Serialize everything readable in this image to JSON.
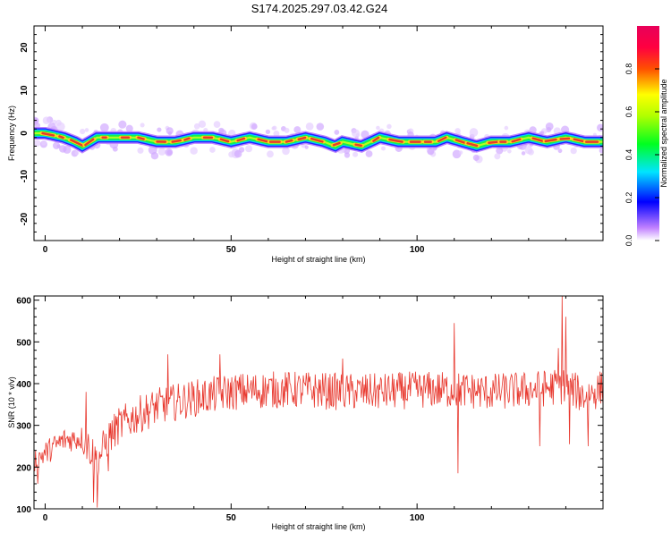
{
  "title": "S174.2025.297.03.42.G24",
  "colors": {
    "snr_line": "#e8392f",
    "trace_core": "#e53d2a",
    "axis": "#000000"
  },
  "chart_data": [
    {
      "type": "heatmap",
      "xlabel": "Height of straight line (km)",
      "ylabel": "Frequency (Hz)",
      "xlim": [
        -3,
        150
      ],
      "ylim": [
        -25,
        25
      ],
      "xticks": [
        0,
        50,
        100
      ],
      "yticks": [
        -20,
        -10,
        0,
        10,
        20
      ],
      "colorbar": {
        "label": "Normalized spectral amplitude",
        "range": [
          0,
          1
        ],
        "ticks": [
          "0.0",
          "0.2",
          "0.4",
          "0.6",
          "0.8"
        ],
        "tick_values": [
          0.0,
          0.2,
          0.4,
          0.6,
          0.8
        ],
        "colormap": "rainbow (white-violet-blue-cyan-green-yellow-red-magenta)"
      },
      "ridge": {
        "x": [
          -3,
          0,
          5,
          8,
          10,
          14,
          20,
          25,
          30,
          35,
          40,
          45,
          50,
          55,
          60,
          65,
          70,
          75,
          78,
          80,
          85,
          90,
          95,
          100,
          105,
          108,
          112,
          116,
          120,
          125,
          130,
          135,
          140,
          145
        ],
        "freq_hz": [
          0,
          0,
          -1,
          -2,
          -3,
          -1,
          -1,
          -1,
          -2,
          -2,
          -1,
          -1,
          -2,
          -1,
          -2,
          -2,
          -1,
          -2,
          -3,
          -2,
          -3,
          -1,
          -2,
          -2,
          -2,
          -1,
          -2,
          -3,
          -2,
          -2,
          -1,
          -2,
          -1,
          -2
        ]
      }
    },
    {
      "type": "line",
      "xlabel": "Height of straight line (km)",
      "ylabel": "SNR (10 * v/v)",
      "xlim": [
        -3,
        150
      ],
      "ylim": [
        100,
        610
      ],
      "xticks": [
        0,
        50,
        100
      ],
      "yticks": [
        100,
        200,
        300,
        400,
        500,
        600
      ],
      "series": [
        {
          "trend_x": [
            -3,
            5,
            10,
            12,
            14,
            17,
            20,
            25,
            30,
            40,
            50,
            60,
            70,
            80,
            90,
            100,
            110,
            120,
            130,
            140,
            145,
            150
          ],
          "trend_y": [
            215,
            265,
            270,
            245,
            215,
            270,
            300,
            325,
            345,
            365,
            380,
            385,
            385,
            380,
            380,
            385,
            385,
            380,
            385,
            395,
            370,
            390
          ],
          "spikes": [
            {
              "x": -2,
              "y": 160
            },
            {
              "x": 11,
              "y": 380
            },
            {
              "x": 13,
              "y": 115
            },
            {
              "x": 14,
              "y": 103
            },
            {
              "x": 17,
              "y": 190
            },
            {
              "x": 33,
              "y": 470
            },
            {
              "x": 47,
              "y": 470
            },
            {
              "x": 80,
              "y": 460
            },
            {
              "x": 110,
              "y": 545
            },
            {
              "x": 111,
              "y": 185
            },
            {
              "x": 133,
              "y": 250
            },
            {
              "x": 138,
              "y": 485
            },
            {
              "x": 139,
              "y": 610
            },
            {
              "x": 140,
              "y": 560
            },
            {
              "x": 141,
              "y": 255
            },
            {
              "x": 146,
              "y": 250
            }
          ],
          "noise_amplitude": 45
        }
      ]
    }
  ]
}
